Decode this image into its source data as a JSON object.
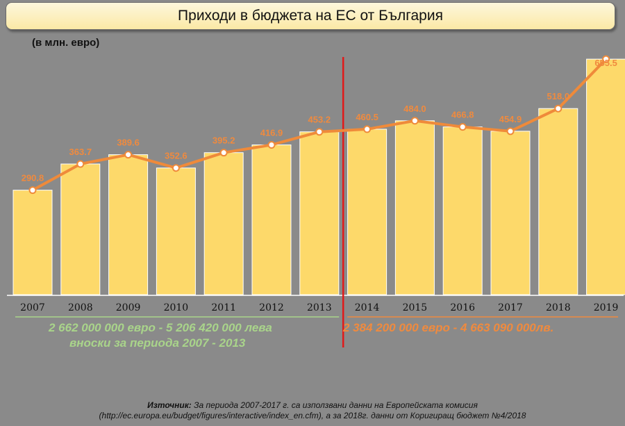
{
  "title": "Приходи в бюджета на ЕС от България",
  "unit_label": "(в млн. евро)",
  "notes": {
    "left_line1": "2 662 000 000 евро - 5 206 420 000 лева",
    "left_line2": "вноски за периода 2007 - 2013",
    "right_line1": "2 384 200 000 евро - 4 663 090 000лв."
  },
  "source": {
    "label": "Източник:",
    "line1": " За периода 2007-2017 г. са използвани данни на Европейската комисия",
    "line2": "(http://ec.europa.eu/budget/figures/interactive/index_en.cfm), а за 2018г. данни от Коригиращ бюджет №4/2018"
  },
  "colors": {
    "bar": "#fdd96a",
    "line": "#ef8a3a",
    "value_label": "#f08a3e",
    "divider": "#e11919",
    "green_text": "#a9d48a"
  },
  "chart_data": {
    "type": "bar",
    "categories": [
      "2007",
      "2008",
      "2009",
      "2010",
      "2011",
      "2012",
      "2013",
      "2014",
      "2015",
      "2016",
      "2017",
      "2018",
      "2019"
    ],
    "series": [
      {
        "type": "bar",
        "values": [
          290.8,
          363.7,
          389.6,
          352.6,
          395.2,
          416.9,
          453.2,
          460.5,
          484.0,
          466.8,
          454.9,
          518.0,
          655.5
        ]
      },
      {
        "type": "line",
        "values": [
          290.8,
          363.7,
          389.6,
          352.6,
          395.2,
          416.9,
          453.2,
          460.5,
          484.0,
          466.8,
          454.9,
          518.0,
          655.5
        ]
      }
    ],
    "value_labels": [
      "290.8",
      "363.7",
      "389.6",
      "352.6",
      "395.2",
      "416.9",
      "453.2",
      "460.5",
      "484.0",
      "466.8",
      "454.9",
      "518.0",
      "655.5"
    ],
    "divider_between": [
      "2013",
      "2014"
    ],
    "grid": false,
    "legend": "none"
  }
}
